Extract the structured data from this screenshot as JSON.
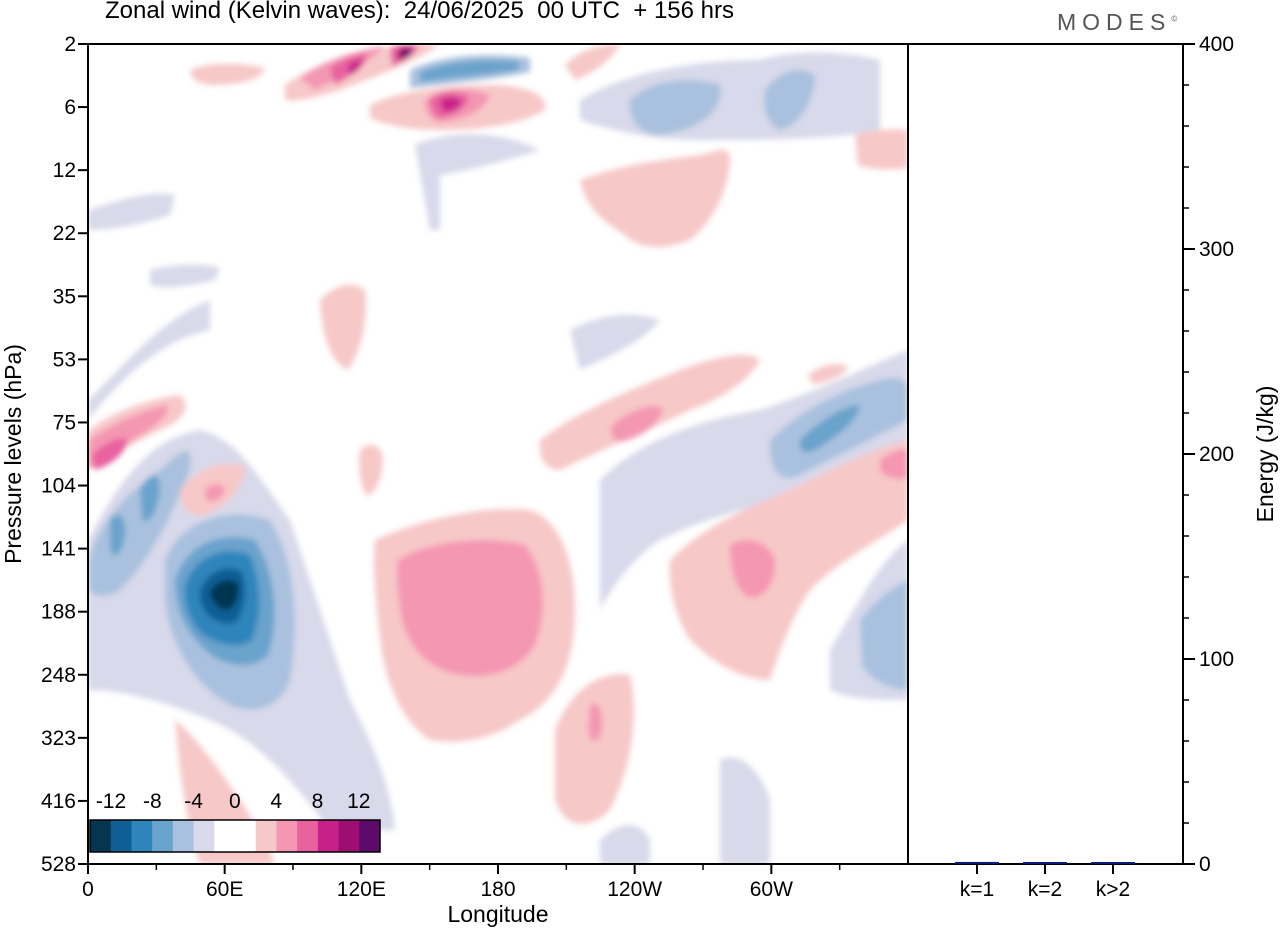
{
  "header": {
    "title": "Zonal wind (Kelvin waves):  24/06/2025  00 UTC  + 156 hrs",
    "brand": "MODES",
    "brand_mark": "©"
  },
  "chart_data": [
    {
      "type": "heatmap",
      "title": "Zonal wind (Kelvin waves):  24/06/2025  00 UTC  + 156 hrs",
      "xlabel": "Longitude",
      "ylabel": "Pressure levels (hPa)",
      "x_ticks": [
        "0",
        "60E",
        "120E",
        "180",
        "120W",
        "60W"
      ],
      "y_ticks": [
        "2",
        "6",
        "12",
        "22",
        "35",
        "53",
        "75",
        "104",
        "141",
        "188",
        "248",
        "323",
        "416",
        "528"
      ],
      "colorbar_labels": [
        "-12",
        "-8",
        "-4",
        "0",
        "4",
        "8",
        "12"
      ],
      "color_levels": [
        "#06354f",
        "#0f5f95",
        "#2f85bb",
        "#6aa3cc",
        "#a9c1de",
        "#d8d9ea",
        "#ffffff",
        "#ffffff",
        "#f7c8c8",
        "#f497b2",
        "#e8629f",
        "#c7208a",
        "#9e0e72",
        "#5e0a6a"
      ],
      "features": [
        {
          "lon": 40,
          "level": "141-188",
          "value": -12
        },
        {
          "lon": 20,
          "level": "104-141",
          "value": -8
        },
        {
          "lon": 10,
          "level": "75-104",
          "value": 10
        },
        {
          "lon": 160,
          "level": "2-6",
          "value": 12
        },
        {
          "lon": 150,
          "level": "2-6",
          "value": 12
        },
        {
          "lon": 160,
          "level": "2-6",
          "value": -8
        },
        {
          "lon": 185,
          "level": "141-188",
          "value": 6
        },
        {
          "lon": 240,
          "level": "75",
          "value": 6
        },
        {
          "lon": 295,
          "level": "75-104",
          "value": -8
        },
        {
          "lon": 300,
          "level": "2-6",
          "value": -6
        },
        {
          "lon": 345,
          "level": "188",
          "value": -6
        },
        {
          "lon": 270,
          "level": "141-188",
          "value": 6
        },
        {
          "lon": 225,
          "level": "323",
          "value": 6
        }
      ]
    },
    {
      "type": "bar",
      "categories": [
        "k=1",
        "k=2",
        "k>2"
      ],
      "values": [
        1,
        0.5,
        0.5
      ],
      "ylabel": "Energy (J/kg)",
      "ylim": [
        0,
        400
      ],
      "y_ticks": [
        "0",
        "100",
        "200",
        "300",
        "400"
      ],
      "bar_color": "#0a1a7a"
    }
  ]
}
